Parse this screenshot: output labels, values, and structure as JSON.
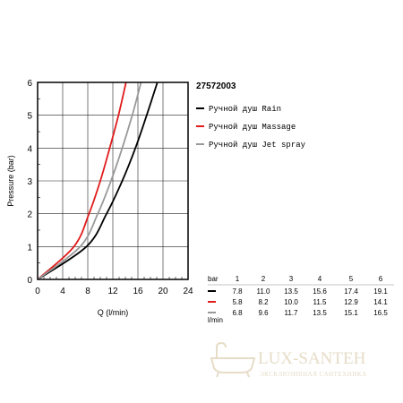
{
  "chart_data": {
    "type": "line",
    "title": "27572003",
    "xlabel": "Q (l/min)",
    "ylabel": "Pressure (bar)",
    "xlim": [
      0,
      24
    ],
    "ylim": [
      0,
      6
    ],
    "x_ticks": [
      "0",
      "4",
      "8",
      "12",
      "16",
      "20",
      "24"
    ],
    "y_ticks": [
      "0",
      "1",
      "2",
      "3",
      "4",
      "5",
      "6"
    ],
    "grid": true,
    "legend_position": "right",
    "series": [
      {
        "name": "Ручной душ Rain",
        "color": "#000000",
        "points": [
          [
            0,
            0
          ],
          [
            7.8,
            1
          ],
          [
            11.0,
            2
          ],
          [
            13.5,
            3
          ],
          [
            15.6,
            4
          ],
          [
            17.4,
            5
          ],
          [
            19.1,
            6
          ]
        ]
      },
      {
        "name": "Ручной душ Massage",
        "color": "#e01b1b",
        "points": [
          [
            0,
            0
          ],
          [
            5.8,
            1
          ],
          [
            8.2,
            2
          ],
          [
            10.0,
            3
          ],
          [
            11.5,
            4
          ],
          [
            12.9,
            5
          ],
          [
            14.1,
            6
          ]
        ]
      },
      {
        "name": "Ручной душ Jet spray",
        "color": "#999999",
        "points": [
          [
            0,
            0
          ],
          [
            6.8,
            1
          ],
          [
            9.6,
            2
          ],
          [
            11.7,
            3
          ],
          [
            13.5,
            4
          ],
          [
            15.1,
            5
          ],
          [
            16.5,
            6
          ]
        ]
      }
    ],
    "table": {
      "header_label": "bar",
      "unit_label": "l/min",
      "columns": [
        "1",
        "2",
        "3",
        "4",
        "5",
        "6"
      ],
      "rows": [
        {
          "color": "#000000",
          "values": [
            "7.8",
            "11.0",
            "13.5",
            "15.6",
            "17.4",
            "19.1"
          ]
        },
        {
          "color": "#e01b1b",
          "values": [
            "5.8",
            "8.2",
            "10.0",
            "11.5",
            "12.9",
            "14.1"
          ]
        },
        {
          "color": "#999999",
          "values": [
            "6.8",
            "9.6",
            "11.7",
            "13.5",
            "15.1",
            "16.5"
          ]
        }
      ]
    }
  },
  "watermark": {
    "brand": "LUX-SANTEH",
    "tagline": "ЭКСКЛЮЗИВНАЯ САНТЕХНИКА",
    "color": "#e6dcc8"
  }
}
